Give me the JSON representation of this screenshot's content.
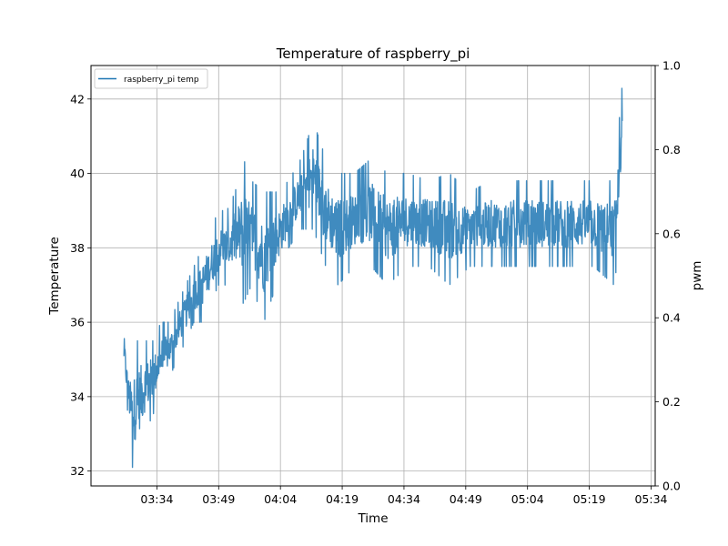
{
  "chart_data": {
    "type": "line",
    "title": "Temperature of raspberry_pi",
    "xlabel": "Time",
    "ylabel": "Temperature",
    "y2label": "pwm",
    "xlim": [
      "03:18",
      "05:35"
    ],
    "ylim": [
      31.6,
      42.9
    ],
    "y2lim": [
      0.0,
      1.0
    ],
    "xticks": [
      "03:34",
      "03:49",
      "04:04",
      "04:19",
      "04:34",
      "04:49",
      "05:04",
      "05:19",
      "05:34"
    ],
    "yticks": [
      32,
      34,
      36,
      38,
      40,
      42
    ],
    "y2ticks": [
      "0.0",
      "0.2",
      "0.4",
      "0.6",
      "0.8",
      "1.0"
    ],
    "grid": true,
    "legend_position": "top-left",
    "series": [
      {
        "name": "raspberry_pi temp",
        "color": "#1f77b4",
        "envelope": {
          "x": [
            "03:26",
            "03:27",
            "03:28",
            "03:29",
            "03:30",
            "03:31",
            "03:33",
            "03:35",
            "03:37",
            "03:39",
            "03:41",
            "03:43",
            "03:45",
            "03:47",
            "03:49",
            "03:51",
            "03:53",
            "03:55",
            "03:57",
            "04:00",
            "04:03",
            "04:06",
            "04:09",
            "04:12",
            "04:15",
            "04:18",
            "04:22",
            "04:26",
            "04:30",
            "04:35",
            "04:40",
            "04:45",
            "04:50",
            "04:55",
            "05:00",
            "05:05",
            "05:10",
            "05:15",
            "05:20",
            "05:25",
            "05:27"
          ],
          "upper": [
            36.0,
            34.8,
            35.0,
            35.5,
            35.5,
            35.5,
            35.5,
            36.0,
            36.0,
            36.5,
            37.0,
            37.5,
            38.0,
            38.5,
            39.0,
            39.0,
            39.5,
            40.4,
            39.8,
            39.5,
            39.5,
            39.8,
            40.4,
            41.4,
            40.4,
            40.0,
            40.0,
            40.4,
            40.0,
            40.0,
            39.8,
            40.0,
            39.5,
            39.8,
            39.8,
            39.8,
            39.8,
            39.8,
            39.8,
            39.8,
            42.4
          ],
          "lower": [
            34.5,
            33.5,
            32.1,
            32.1,
            32.5,
            33.0,
            33.5,
            34.0,
            34.5,
            35.0,
            35.5,
            36.0,
            36.0,
            36.5,
            37.0,
            37.0,
            37.0,
            36.5,
            37.0,
            36.0,
            37.0,
            38.0,
            38.5,
            38.5,
            37.5,
            37.0,
            37.5,
            37.5,
            37.0,
            37.5,
            37.5,
            37.0,
            37.5,
            37.5,
            37.5,
            37.5,
            37.5,
            37.5,
            37.5,
            37.0,
            38.5
          ]
        }
      }
    ]
  }
}
